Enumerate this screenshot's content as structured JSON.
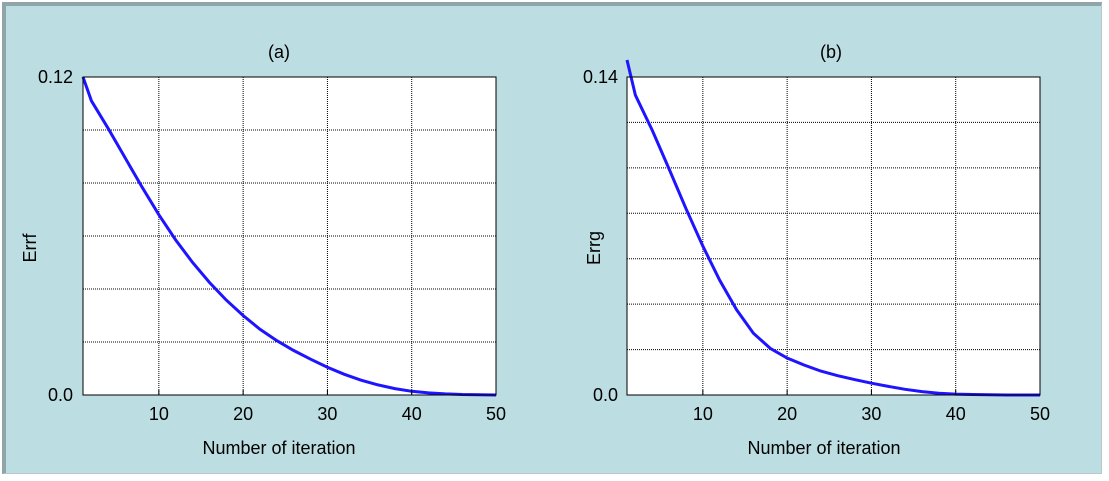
{
  "style": {
    "panel_background": "#bcdde1",
    "plot_background": "#ffffff",
    "line_color": "#1e14ff",
    "grid_color": "#000000"
  },
  "chart_data": [
    {
      "type": "line",
      "title": "(a)",
      "xlabel": "Number of iteration",
      "ylabel": "Errf",
      "xlim": [
        1,
        50
      ],
      "ylim": [
        0,
        0.12
      ],
      "x_ticks": [
        10,
        20,
        30,
        40,
        50
      ],
      "x_tick_labels": [
        "10",
        "20",
        "30",
        "40",
        "50"
      ],
      "y_tick_labels": [
        {
          "value": 0,
          "label": "0.0"
        },
        {
          "value": 0.12,
          "label": "0.12"
        }
      ],
      "y_gridlines": [
        0.02,
        0.04,
        0.06,
        0.08,
        0.1,
        0.12
      ],
      "grid": true,
      "series": [
        {
          "color": "#1e14ff",
          "x": [
            1,
            2,
            4,
            6,
            8,
            10,
            12,
            14,
            16,
            18,
            20,
            22,
            24,
            26,
            28,
            30,
            32,
            34,
            36,
            38,
            40,
            42,
            44,
            46,
            48,
            50
          ],
          "y": [
            0.12,
            0.111,
            0.1005,
            0.0895,
            0.0785,
            0.068,
            0.0585,
            0.05,
            0.0425,
            0.0358,
            0.03,
            0.0248,
            0.0205,
            0.0168,
            0.0135,
            0.0105,
            0.0078,
            0.0056,
            0.0038,
            0.0024,
            0.0014,
            0.0008,
            0.0004,
            0.0002,
            0.0001,
            0.0
          ]
        }
      ]
    },
    {
      "type": "line",
      "title": "(b)",
      "xlabel": "Number of iteration",
      "ylabel": "Errg",
      "xlim": [
        1,
        50
      ],
      "ylim": [
        0,
        0.14
      ],
      "x_ticks": [
        10,
        20,
        30,
        40,
        50
      ],
      "x_tick_labels": [
        "10",
        "20",
        "30",
        "40",
        "50"
      ],
      "y_tick_labels": [
        {
          "value": 0,
          "label": "0.0"
        },
        {
          "value": 0.14,
          "label": "0.14"
        }
      ],
      "y_gridlines": [
        0.02,
        0.04,
        0.06,
        0.08,
        0.1,
        0.12,
        0.14
      ],
      "grid": true,
      "series": [
        {
          "color": "#1e14ff",
          "x": [
            1,
            2,
            4,
            6,
            8,
            10,
            12,
            14,
            16,
            18,
            20,
            22,
            24,
            26,
            28,
            30,
            32,
            34,
            36,
            38,
            40,
            42,
            44,
            46,
            48,
            50
          ],
          "y": [
            0.1475,
            0.132,
            0.1165,
            0.0995,
            0.082,
            0.0655,
            0.0505,
            0.0375,
            0.0272,
            0.0205,
            0.0163,
            0.0132,
            0.0105,
            0.0085,
            0.0068,
            0.0052,
            0.0038,
            0.0025,
            0.0015,
            0.0008,
            0.0004,
            0.0002,
            0.0001,
            0.0,
            0.0,
            0.0
          ]
        }
      ]
    }
  ]
}
